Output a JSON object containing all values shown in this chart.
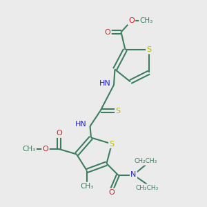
{
  "bg_color": "#ebebeb",
  "atom_colors": {
    "C": "#3d7d5f",
    "N": "#2020cc",
    "O": "#cc2020",
    "S": "#bbbb00",
    "H": "#707070"
  },
  "bond_color": "#3d7d5f",
  "bond_width": 1.5,
  "figsize": [
    3.0,
    3.0
  ],
  "dpi": 100,
  "xlim": [
    0,
    10
  ],
  "ylim": [
    0,
    10
  ]
}
